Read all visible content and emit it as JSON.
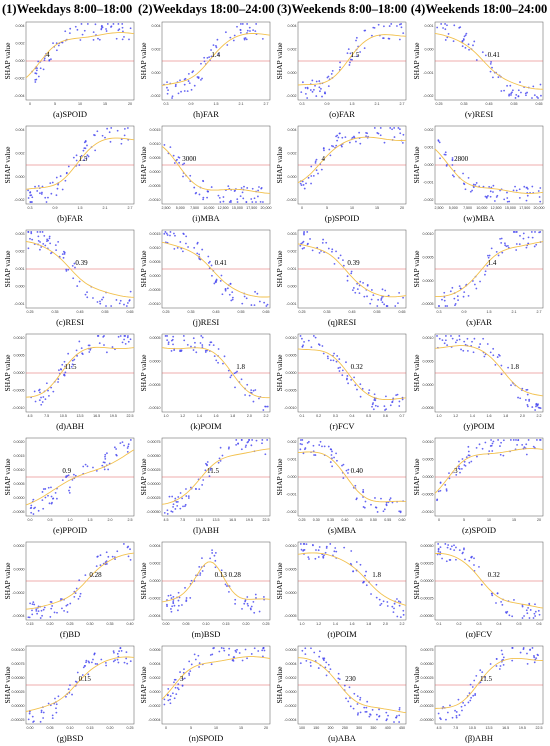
{
  "columns": [
    "(1)Weekdays 8:00–18:00",
    "(2)Weekdays 18:00–24:00",
    "(3)Weekends 8:00–18:00",
    "(4)Weekends 18:00–24:00"
  ],
  "ylabel": "SHAP value",
  "colors": {
    "points": "#4a4af0",
    "trend": "#f2c14e",
    "zero_line": "#e05a5a",
    "axis": "#555555"
  },
  "chart_data": [
    {
      "id": "a",
      "caption": "(a)SPOID",
      "type": "scatter",
      "threshold": "4",
      "xlim": [
        0,
        22
      ],
      "ylim": [
        -0.006,
        0.006
      ],
      "xticks": [
        "0",
        "5",
        "10",
        "15",
        "20"
      ],
      "yticks": [
        "0.004",
        "0.002",
        "0.000",
        "-0.002",
        "-0.004"
      ],
      "shape": "rise",
      "nx": 0.15,
      "grid": {
        "x": [],
        "y": []
      },
      "trend_y": [],
      "col": 0,
      "row": 0
    },
    {
      "id": "b",
      "caption": "(b)FAR",
      "type": "scatter",
      "threshold": "1.5",
      "xlim": [
        0,
        3
      ],
      "ylim": [
        -0.004,
        0.006
      ],
      "xticks": [
        "0.3",
        "0.9",
        "1.5",
        "2.1",
        "2.7"
      ],
      "yticks": [
        "0.004",
        "0.002",
        "0.000",
        "-0.002"
      ],
      "shape": "rise",
      "nx": 0.45,
      "col": 0,
      "row": 1
    },
    {
      "id": "c",
      "caption": "(c)RESI",
      "type": "scatter",
      "threshold": "0.39",
      "xlim": [
        0.2,
        0.65
      ],
      "ylim": [
        -0.002,
        0.004
      ],
      "xticks": [
        "0.25",
        "0.35",
        "0.45",
        "0.55",
        "0.65"
      ],
      "yticks": [
        "0.003",
        "0.002",
        "0.001",
        "0.000",
        "-0.001"
      ],
      "shape": "fall",
      "nx": 0.42,
      "col": 0,
      "row": 2
    },
    {
      "id": "d",
      "caption": "(d)ABH",
      "type": "scatter",
      "threshold": "11.5",
      "xlim": [
        4,
        23
      ],
      "ylim": [
        -0.0015,
        0.0015
      ],
      "xticks": [
        "4.5",
        "7.5",
        "10.5",
        "13.5",
        "16.5",
        "19.5",
        "22.5"
      ],
      "yticks": [
        "0.0010",
        "0.0005",
        "0.0000",
        "-0.0005",
        "-0.0010"
      ],
      "shape": "rise",
      "nx": 0.32,
      "col": 0,
      "row": 3
    },
    {
      "id": "e",
      "caption": "(e)PPOID",
      "type": "scatter",
      "threshold": "0.9",
      "xlim": [
        0,
        3
      ],
      "ylim": [
        -0.001,
        0.0025
      ],
      "xticks": [
        "0.0",
        "0.5",
        "1.0",
        "1.5",
        "2.0",
        "2.5"
      ],
      "yticks": [
        "0.0020",
        "0.0015",
        "0.0010",
        "0.0005",
        "0.0000",
        "-0.0005"
      ],
      "shape": "linear",
      "nx": 0.3,
      "col": 0,
      "row": 4
    },
    {
      "id": "f",
      "caption": "(f)BD",
      "type": "scatter",
      "threshold": "0.28",
      "xlim": [
        0.1,
        0.42
      ],
      "ylim": [
        -0.0006,
        0.0004
      ],
      "xticks": [
        "0.15",
        "0.20",
        "0.25",
        "0.30",
        "0.35",
        "0.40"
      ],
      "yticks": [
        "0.0002",
        "0.0000",
        "-0.0002",
        "-0.0004"
      ],
      "shape": "rise",
      "nx": 0.55,
      "col": 0,
      "row": 5
    },
    {
      "id": "g",
      "caption": "(g)BSD",
      "type": "scatter",
      "threshold": "0.15",
      "xlim": [
        0,
        0.3
      ],
      "ylim": [
        -0.0006,
        0.0012
      ],
      "xticks": [
        "0.00",
        "0.05",
        "0.10",
        "0.15",
        "0.20",
        "0.25"
      ],
      "yticks": [
        "0.00100",
        "0.00075",
        "0.00050",
        "0.00025",
        "0.00000",
        "-0.00025"
      ],
      "shape": "rise",
      "nx": 0.45,
      "col": 0,
      "row": 6
    },
    {
      "id": "h",
      "caption": "(h)FAR",
      "type": "scatter",
      "threshold": "1.4",
      "xlim": [
        0,
        3
      ],
      "ylim": [
        -0.004,
        0.005
      ],
      "xticks": [
        "0.3",
        "0.9",
        "1.5",
        "2.1",
        "2.7"
      ],
      "yticks": [
        "0.004",
        "0.002",
        "0.000",
        "-0.002"
      ],
      "shape": "rise",
      "nx": 0.42,
      "col": 1,
      "row": 0
    },
    {
      "id": "i",
      "caption": "(i)MBA",
      "type": "scatter",
      "threshold": "3000",
      "xlim": [
        0,
        20000
      ],
      "ylim": [
        -0.0015,
        0.002
      ],
      "xticks": [
        "2,500",
        "5,000",
        "7,500",
        "10,000",
        "12,500",
        "15,000",
        "17,500",
        "20,000"
      ],
      "yticks": [
        "0.0015",
        "0.0010",
        "0.0005",
        "0.0000",
        "-0.0005",
        "-0.0010"
      ],
      "shape": "fall",
      "nx": 0.15,
      "col": 1,
      "row": 1
    },
    {
      "id": "j",
      "caption": "(j)RESI",
      "type": "scatter",
      "threshold": "0.41",
      "xlim": [
        0.2,
        0.65
      ],
      "ylim": [
        -0.0015,
        0.002
      ],
      "xticks": [
        "0.25",
        "0.35",
        "0.45",
        "0.55",
        "0.65"
      ],
      "yticks": [
        "0.0015",
        "0.0010",
        "0.0005",
        "0.0000",
        "-0.0005",
        "-0.0010"
      ],
      "shape": "fall",
      "nx": 0.45,
      "col": 1,
      "row": 2
    },
    {
      "id": "k",
      "caption": "(k)POIM",
      "type": "scatter",
      "threshold": "1.8",
      "xlim": [
        1,
        2.2
      ],
      "ylim": [
        -0.001,
        0.001
      ],
      "xticks": [
        "1.0",
        "1.2",
        "1.4",
        "1.6",
        "1.8",
        "2.0",
        "2.2"
      ],
      "yticks": [
        "0.0005",
        "0.0000",
        "-0.0005",
        "-0.0010"
      ],
      "shape": "fall",
      "nx": 0.65,
      "col": 1,
      "row": 3
    },
    {
      "id": "l",
      "caption": "(l)ABH",
      "type": "scatter",
      "threshold": "11.5",
      "xlim": [
        4,
        23
      ],
      "ylim": [
        -0.0008,
        0.0008
      ],
      "xticks": [
        "4.5",
        "7.5",
        "10.5",
        "13.5",
        "16.5",
        "19.5",
        "22.5"
      ],
      "yticks": [
        "0.00075",
        "0.00050",
        "0.00025",
        "0.00000",
        "-0.00025",
        "-0.00050"
      ],
      "shape": "rise",
      "nx": 0.38,
      "col": 1,
      "row": 4
    },
    {
      "id": "m",
      "caption": "(m)BSD",
      "type": "scatter",
      "threshold": "0.13  0.28",
      "xlim": [
        0,
        0.3
      ],
      "ylim": [
        -0.0006,
        0.0006
      ],
      "xticks": [
        "0.00",
        "0.05",
        "0.10",
        "0.15",
        "0.20",
        "0.25"
      ],
      "yticks": [
        "0.0004",
        "0.0002",
        "0.0000",
        "-0.0002",
        "-0.0004"
      ],
      "shape": "bump",
      "nx": 0.45,
      "col": 1,
      "row": 5
    },
    {
      "id": "n",
      "caption": "(n)SPOID",
      "type": "scatter",
      "threshold": "3",
      "xlim": [
        0,
        22
      ],
      "ylim": [
        -0.0005,
        0.0008
      ],
      "xticks": [
        "0",
        "5",
        "10",
        "15",
        "20"
      ],
      "yticks": [
        "0.0006",
        "0.0004",
        "0.0002",
        "0.0000",
        "-0.0002",
        "-0.0004"
      ],
      "shape": "rise",
      "nx": 0.13,
      "col": 1,
      "row": 6
    },
    {
      "id": "o",
      "caption": "(o)FAR",
      "type": "scatter",
      "threshold": "1.5",
      "xlim": [
        0,
        3
      ],
      "ylim": [
        -0.004,
        0.006
      ],
      "xticks": [
        "0.3",
        "0.9",
        "1.5",
        "2.1",
        "2.7"
      ],
      "yticks": [
        "0.004",
        "0.002",
        "0.000",
        "-0.002"
      ],
      "shape": "rise",
      "nx": 0.45,
      "col": 2,
      "row": 0
    },
    {
      "id": "p",
      "caption": "(p)SPOID",
      "type": "scatter",
      "threshold": "4",
      "xlim": [
        0,
        22
      ],
      "ylim": [
        -0.004,
        0.005
      ],
      "xticks": [
        "0",
        "5",
        "10",
        "15",
        "20"
      ],
      "yticks": [
        "0.004",
        "0.002",
        "0.000",
        "-0.002"
      ],
      "shape": "rise",
      "nx": 0.18,
      "col": 2,
      "row": 1
    },
    {
      "id": "q",
      "caption": "(q)RESI",
      "type": "scatter",
      "threshold": "0.39",
      "xlim": [
        0.2,
        0.65
      ],
      "ylim": [
        -0.002,
        0.004
      ],
      "xticks": [
        "0.25",
        "0.35",
        "0.45",
        "0.55",
        "0.65"
      ],
      "yticks": [
        "0.003",
        "0.002",
        "0.001",
        "0.000",
        "-0.001"
      ],
      "shape": "fall",
      "nx": 0.42,
      "col": 2,
      "row": 2
    },
    {
      "id": "r",
      "caption": "(r)FCV",
      "type": "scatter",
      "threshold": "0.32",
      "xlim": [
        0,
        0.7
      ],
      "ylim": [
        -0.0015,
        0.0015
      ],
      "xticks": [
        "0.1",
        "0.2",
        "0.3",
        "0.4",
        "0.5",
        "0.6",
        "0.7"
      ],
      "yticks": [
        "0.0010",
        "0.0005",
        "0.0000",
        "-0.0005",
        "-0.0010"
      ],
      "shape": "fall",
      "nx": 0.45,
      "col": 2,
      "row": 3
    },
    {
      "id": "s",
      "caption": "(s)MBA",
      "type": "scatter",
      "threshold": "0.40",
      "xlim": [
        0.2,
        0.65
      ],
      "ylim": [
        -0.003,
        0.003
      ],
      "xticks": [
        "0.25",
        "0.30",
        "0.35",
        "0.40",
        "0.45",
        "0.50",
        "0.55",
        "0.60"
      ],
      "yticks": [
        "0.002",
        "0.001",
        "0.000",
        "-0.001",
        "-0.002"
      ],
      "shape": "fall",
      "nx": 0.45,
      "col": 2,
      "row": 4
    },
    {
      "id": "t",
      "caption": "(t)POIM",
      "type": "scatter",
      "threshold": "1.8",
      "xlim": [
        1,
        2.2
      ],
      "ylim": [
        -0.001,
        0.001
      ],
      "xticks": [
        "1.0",
        "1.2",
        "1.4",
        "1.6",
        "1.8",
        "2.0",
        "2.2"
      ],
      "yticks": [
        "0.0010",
        "0.0005",
        "0.0000",
        "-0.0005"
      ],
      "shape": "fall",
      "nx": 0.65,
      "col": 2,
      "row": 5
    },
    {
      "id": "u",
      "caption": "(u)ABA",
      "type": "scatter",
      "threshold": "230",
      "xlim": [
        50,
        500
      ],
      "ylim": [
        -0.0008,
        0.0008
      ],
      "xticks": [
        "100",
        "150",
        "200",
        "250",
        "300",
        "350",
        "400",
        "450"
      ],
      "yticks": [
        "0.0006",
        "0.0004",
        "0.0002",
        "0.0000",
        "-0.0002",
        "-0.0004"
      ],
      "shape": "fall",
      "nx": 0.4,
      "col": 2,
      "row": 6
    },
    {
      "id": "v",
      "caption": "(v)RESI",
      "type": "scatter",
      "threshold": "0.41",
      "xlim": [
        0.2,
        0.65
      ],
      "ylim": [
        -0.002,
        0.002
      ],
      "xticks": [
        "0.25",
        "0.35",
        "0.45",
        "0.55",
        "0.65"
      ],
      "yticks": [
        "0.001",
        "0.000",
        "-0.001",
        "-0.002"
      ],
      "shape": "fall",
      "nx": 0.45,
      "col": 3,
      "row": 0
    },
    {
      "id": "w",
      "caption": "(w)MBA",
      "type": "scatter",
      "threshold": "2800",
      "xlim": [
        0,
        20000
      ],
      "ylim": [
        -0.0025,
        0.0025
      ],
      "xticks": [
        "2,500",
        "5,000",
        "7,500",
        "10,000",
        "12,500",
        "15,000",
        "17,500",
        "20,000"
      ],
      "yticks": [
        "0.002",
        "0.001",
        "0.000",
        "-0.001",
        "-0.002"
      ],
      "shape": "fall",
      "nx": 0.14,
      "col": 3,
      "row": 1
    },
    {
      "id": "x",
      "caption": "(x)FAR",
      "type": "scatter",
      "threshold": "1.4",
      "xlim": [
        0,
        3
      ],
      "ylim": [
        -0.001,
        0.0015
      ],
      "xticks": [
        "0.3",
        "0.9",
        "1.5",
        "2.1",
        "2.7"
      ],
      "yticks": [
        "0.0010",
        "0.0005",
        "0.0000",
        "-0.0005"
      ],
      "shape": "rise",
      "nx": 0.45,
      "col": 3,
      "row": 2
    },
    {
      "id": "y",
      "caption": "(y)POIM",
      "type": "scatter",
      "threshold": "1.8",
      "xlim": [
        1,
        2.2
      ],
      "ylim": [
        -0.001,
        0.001
      ],
      "xticks": [
        "1.0",
        "1.2",
        "1.4",
        "1.6",
        "1.8",
        "2.0",
        "2.2"
      ],
      "yticks": [
        "0.0010",
        "0.0005",
        "0.0000",
        "-0.0005"
      ],
      "shape": "fall",
      "nx": 0.66,
      "col": 3,
      "row": 3
    },
    {
      "id": "z",
      "caption": "(z)SPOID",
      "type": "scatter",
      "threshold": "3",
      "xlim": [
        0,
        22
      ],
      "ylim": [
        -0.0015,
        0.0015
      ],
      "xticks": [
        "0",
        "5",
        "10",
        "15",
        "20"
      ],
      "yticks": [
        "0.0010",
        "0.0005",
        "0.0000",
        "-0.0005",
        "-0.0010"
      ],
      "shape": "rise",
      "nx": 0.14,
      "col": 3,
      "row": 4
    },
    {
      "id": "alpha",
      "caption": "(α)FCV",
      "type": "scatter",
      "threshold": "0.32",
      "xlim": [
        0,
        0.7
      ],
      "ylim": [
        -0.0007,
        0.0007
      ],
      "xticks": [
        "0.1",
        "0.2",
        "0.3",
        "0.4",
        "0.5",
        "0.6"
      ],
      "yticks": [
        "0.00050",
        "0.00025",
        "0.00000",
        "-0.00025",
        "-0.00050"
      ],
      "shape": "fall",
      "nx": 0.45,
      "col": 3,
      "row": 5
    },
    {
      "id": "beta",
      "caption": "(β)ABH",
      "type": "scatter",
      "threshold": "11.5",
      "xlim": [
        4,
        23
      ],
      "ylim": [
        -0.0008,
        0.0008
      ],
      "xticks": [
        "4.5",
        "7.5",
        "10.5",
        "13.5",
        "16.5",
        "19.5",
        "22.5"
      ],
      "yticks": [
        "0.00075",
        "0.00050",
        "0.00025",
        "0.00000",
        "-0.00025",
        "-0.00050"
      ],
      "shape": "rise",
      "nx": 0.38,
      "col": 3,
      "row": 6
    }
  ]
}
